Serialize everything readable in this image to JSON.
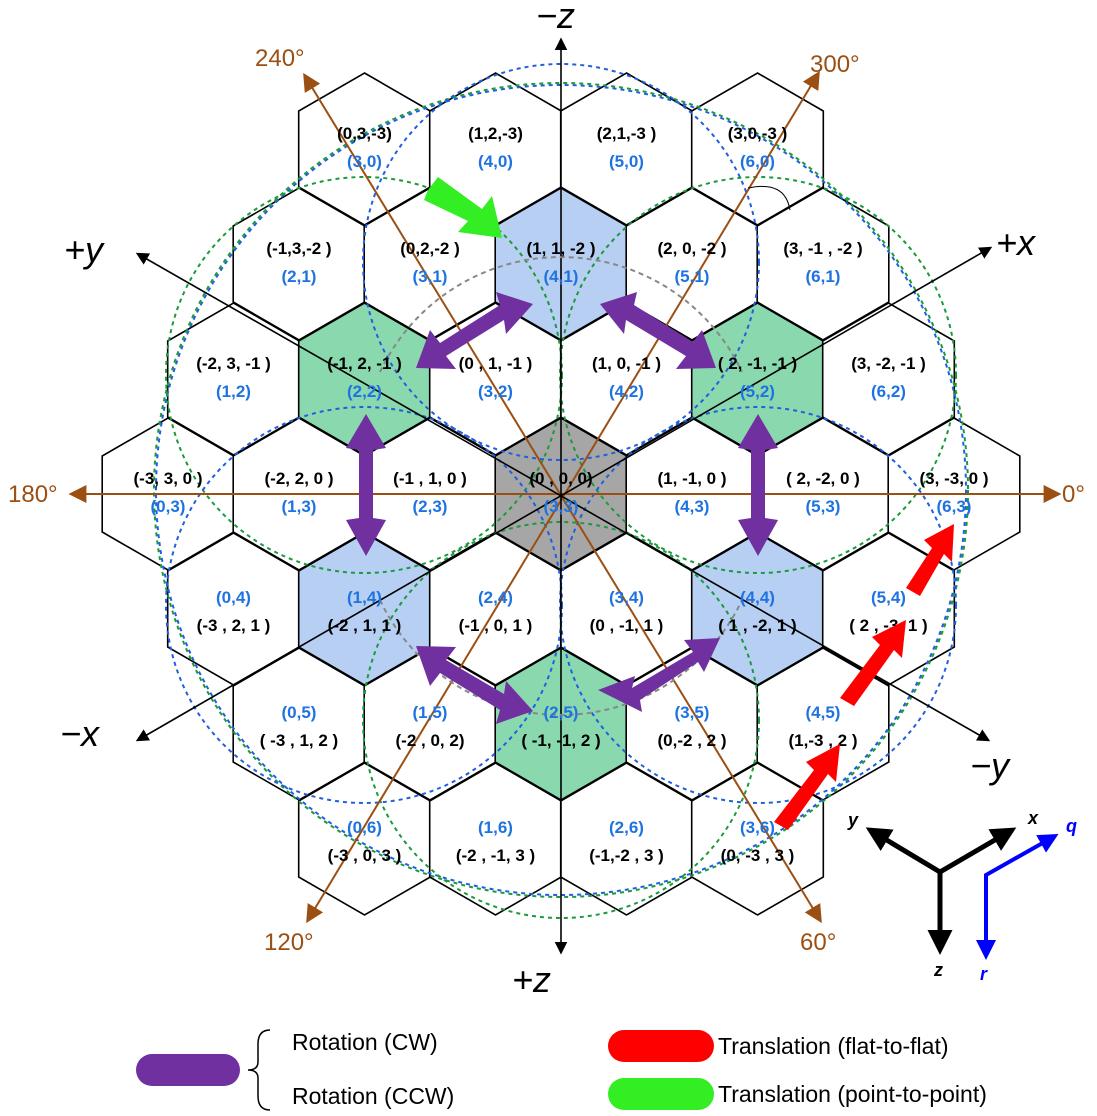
{
  "hex_cells": [
    {
      "cube": "(0,3,-3)",
      "offset": "(3,0)",
      "fill": "white"
    },
    {
      "cube": "(1,2,-3)",
      "offset": "(4,0)",
      "fill": "white"
    },
    {
      "cube": "(2,1,-3 )",
      "offset": "(5,0)",
      "fill": "white"
    },
    {
      "cube": "(3,0,-3 )",
      "offset": "(6,0)",
      "fill": "white"
    },
    {
      "cube": "(-1,3,-2 )",
      "offset": "(2,1)",
      "fill": "white"
    },
    {
      "cube": "(0,2,-2 )",
      "offset": "(3,1)",
      "fill": "white"
    },
    {
      "cube": "(1, 1, -2 )",
      "offset": "(4,1)",
      "fill": "blue"
    },
    {
      "cube": "(2, 0, -2 )",
      "offset": "(5,1)",
      "fill": "white"
    },
    {
      "cube": "(3, -1 , -2 )",
      "offset": "(6,1)",
      "fill": "white"
    },
    {
      "cube": "(-2, 3, -1 )",
      "offset": "(1,2)",
      "fill": "white"
    },
    {
      "cube": "(-1, 2, -1 )",
      "offset": "(2,2)",
      "fill": "green"
    },
    {
      "cube": "(0 , 1, -1 )",
      "offset": "(3,2)",
      "fill": "white"
    },
    {
      "cube": "(1, 0, -1 )",
      "offset": "(4,2)",
      "fill": "white"
    },
    {
      "cube": "( 2, -1, -1 )",
      "offset": "(5,2)",
      "fill": "green"
    },
    {
      "cube": "(3, -2, -1 )",
      "offset": "(6,2)",
      "fill": "white"
    },
    {
      "cube": "(-3, 3, 0 )",
      "offset": "(0,3)",
      "fill": "white"
    },
    {
      "cube": "(-2, 2, 0 )",
      "offset": "(1,3)",
      "fill": "white"
    },
    {
      "cube": "(-1 , 1, 0 )",
      "offset": "(2,3)",
      "fill": "white"
    },
    {
      "cube": "(0 , 0, 0)",
      "offset": "(3,3)",
      "fill": "gray"
    },
    {
      "cube": "(1, -1, 0 )",
      "offset": "(4,3)",
      "fill": "white"
    },
    {
      "cube": "( 2, -2, 0 )",
      "offset": "(5,3)",
      "fill": "white"
    },
    {
      "cube": "(3, -3, 0 )",
      "offset": "(6,3)",
      "fill": "white"
    },
    {
      "cube": "(-3 , 2, 1 )",
      "offset": "(0,4)",
      "fill": "white"
    },
    {
      "cube": "(-2 , 1, 1 )",
      "offset": "(1,4)",
      "fill": "blue"
    },
    {
      "cube": "(-1 , 0, 1 )",
      "offset": "(2,4)",
      "fill": "white"
    },
    {
      "cube": "(0 , -1, 1 )",
      "offset": "(3,4)",
      "fill": "white"
    },
    {
      "cube": "( 1 , -2, 1 )",
      "offset": "(4,4)",
      "fill": "blue"
    },
    {
      "cube": "( 2 , -3, 1 )",
      "offset": "(5,4)",
      "fill": "white"
    },
    {
      "cube": "( -3 , 1, 2 )",
      "offset": "(0,5)",
      "fill": "white"
    },
    {
      "cube": "(-2 , 0, 2)",
      "offset": "(1,5)",
      "fill": "white"
    },
    {
      "cube": "( -1, -1, 2 )",
      "offset": "(2,5)",
      "fill": "green"
    },
    {
      "cube": "(0,-2 , 2 )",
      "offset": "(3,5)",
      "fill": "white"
    },
    {
      "cube": "(1,-3 , 2 )",
      "offset": "(4,5)",
      "fill": "white"
    },
    {
      "cube": "(-3 , 0, 3 )",
      "offset": "(0,6)",
      "fill": "white"
    },
    {
      "cube": "(-2 , -1, 3 )",
      "offset": "(1,6)",
      "fill": "white"
    },
    {
      "cube": "(-1,-2 , 3 )",
      "offset": "(2,6)",
      "fill": "white"
    },
    {
      "cube": "(0, -3 , 3 )",
      "offset": "(3,6)",
      "fill": "white"
    }
  ],
  "axes": {
    "neg_z": "−z",
    "pos_z": "+z",
    "pos_x": "+x",
    "neg_x": "−x",
    "pos_y": "+y",
    "neg_y": "−y"
  },
  "angles": {
    "a0": "0°",
    "a60": "60°",
    "a120": "120°",
    "a180": "180°",
    "a240": "240°",
    "a300": "300°"
  },
  "orientation_key": {
    "x": "x",
    "y": "y",
    "z": "z",
    "q": "q",
    "r": "r"
  },
  "legend": {
    "rotation_cw": "Rotation (CW)",
    "rotation_ccw": "Rotation (CCW)",
    "translation_flat": "Translation (flat-to-flat)",
    "translation_point": "Translation (point-to-point)"
  },
  "colors": {
    "cell_blue": "#b7cff3",
    "cell_green": "#8ad8ad",
    "cell_gray": "#a6a6a6",
    "rotation": "#7030a0",
    "translation_flat": "#ff0000",
    "translation_point": "#33ee22",
    "offset_text": "#1f73e0",
    "angle_lines": "#9c4f12",
    "ring_blue": "#1f5fe0",
    "ring_green": "#1a9a3a"
  }
}
